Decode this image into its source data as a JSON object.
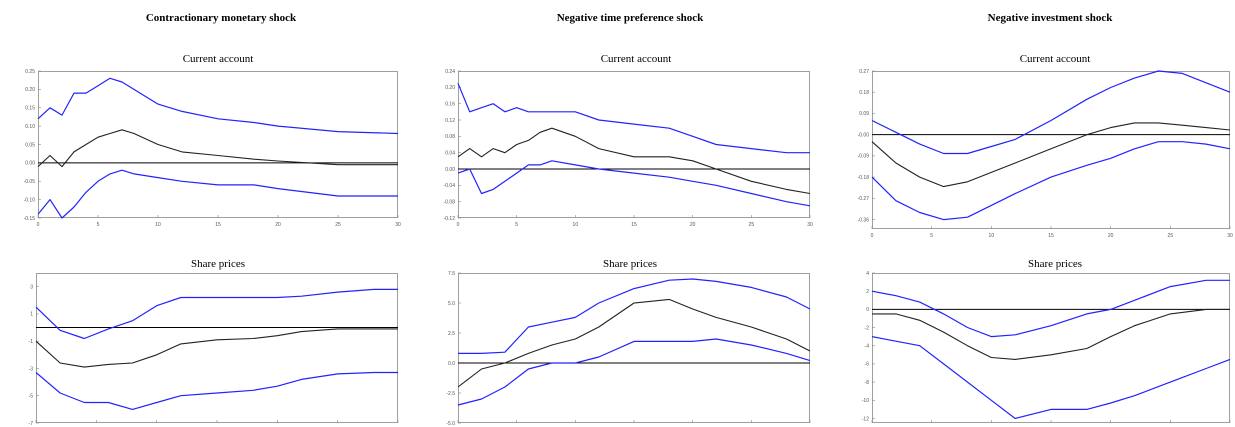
{
  "columns": [
    {
      "title": "Contractionary monetary shock"
    },
    {
      "title": "Negative time preference shock"
    },
    {
      "title": "Negative investment shock"
    }
  ],
  "colors": {
    "bands": "#2222ff",
    "median": "#222222",
    "zero": "#000000",
    "frame": "#888888"
  },
  "chart_data": [
    {
      "type": "line",
      "title": "Current account",
      "column": 0,
      "ylim": [
        -0.15,
        0.25
      ],
      "yticks": [
        -0.15,
        -0.1,
        -0.05,
        0.0,
        0.05,
        0.1,
        0.15,
        0.2,
        0.25
      ],
      "ytick_labels": [
        "-0.15",
        "-0.10",
        "-0.05",
        "0.00",
        "0.05",
        "0.10",
        "0.15",
        "0.20",
        "0.25"
      ],
      "xlim": [
        0,
        30
      ],
      "xticks": [
        0,
        5,
        10,
        15,
        20,
        25,
        30
      ],
      "x": [
        0,
        1,
        2,
        3,
        4,
        5,
        6,
        7,
        8,
        10,
        12,
        15,
        18,
        20,
        25,
        30
      ],
      "series": [
        {
          "role": "upper",
          "values": [
            0.12,
            0.15,
            0.13,
            0.19,
            0.19,
            0.21,
            0.23,
            0.22,
            0.2,
            0.16,
            0.14,
            0.12,
            0.11,
            0.1,
            0.085,
            0.08
          ]
        },
        {
          "role": "median",
          "values": [
            -0.01,
            0.02,
            -0.01,
            0.03,
            0.05,
            0.07,
            0.08,
            0.09,
            0.08,
            0.05,
            0.03,
            0.02,
            0.01,
            0.005,
            -0.005,
            -0.005
          ]
        },
        {
          "role": "lower",
          "values": [
            -0.14,
            -0.1,
            -0.15,
            -0.12,
            -0.08,
            -0.05,
            -0.03,
            -0.02,
            -0.03,
            -0.04,
            -0.05,
            -0.06,
            -0.06,
            -0.07,
            -0.09,
            -0.09
          ]
        }
      ]
    },
    {
      "type": "line",
      "title": "Current account",
      "column": 1,
      "ylim": [
        -0.12,
        0.24
      ],
      "yticks": [
        -0.12,
        -0.08,
        -0.04,
        0.0,
        0.04,
        0.08,
        0.12,
        0.16,
        0.2,
        0.24
      ],
      "ytick_labels": [
        "-0.12",
        "-0.08",
        "-0.04",
        "0.00",
        "0.04",
        "0.08",
        "0.12",
        "0.16",
        "0.20",
        "0.24"
      ],
      "xlim": [
        0,
        30
      ],
      "xticks": [
        0,
        5,
        10,
        15,
        20,
        25,
        30
      ],
      "x": [
        0,
        1,
        2,
        3,
        4,
        5,
        6,
        7,
        8,
        10,
        12,
        15,
        18,
        20,
        22,
        25,
        28,
        30
      ],
      "series": [
        {
          "role": "upper",
          "values": [
            0.21,
            0.14,
            0.15,
            0.16,
            0.14,
            0.15,
            0.14,
            0.14,
            0.14,
            0.14,
            0.12,
            0.11,
            0.1,
            0.08,
            0.06,
            0.05,
            0.04,
            0.04
          ]
        },
        {
          "role": "median",
          "values": [
            0.03,
            0.05,
            0.03,
            0.05,
            0.04,
            0.06,
            0.07,
            0.09,
            0.1,
            0.08,
            0.05,
            0.03,
            0.03,
            0.02,
            0.0,
            -0.03,
            -0.05,
            -0.06
          ]
        },
        {
          "role": "lower",
          "values": [
            -0.01,
            0.0,
            -0.06,
            -0.05,
            -0.03,
            -0.01,
            0.01,
            0.01,
            0.02,
            0.01,
            0.0,
            -0.01,
            -0.02,
            -0.03,
            -0.04,
            -0.06,
            -0.08,
            -0.09
          ]
        }
      ]
    },
    {
      "type": "line",
      "title": "Current account",
      "column": 2,
      "ylim": [
        -0.4,
        0.27
      ],
      "yticks": [
        -0.36,
        -0.27,
        -0.18,
        -0.09,
        0.0,
        0.09,
        0.18,
        0.27
      ],
      "ytick_labels": [
        "-0.36",
        "-0.27",
        "-0.18",
        "-0.09",
        "-0.00",
        "0.09",
        "0.18",
        "0.27"
      ],
      "xlim": [
        0,
        30
      ],
      "xticks": [
        0,
        5,
        10,
        15,
        20,
        25,
        30
      ],
      "x": [
        0,
        2,
        4,
        6,
        8,
        10,
        12,
        15,
        18,
        20,
        22,
        24,
        26,
        28,
        30
      ],
      "series": [
        {
          "role": "upper",
          "values": [
            0.06,
            0.01,
            -0.04,
            -0.08,
            -0.08,
            -0.05,
            -0.02,
            0.06,
            0.15,
            0.2,
            0.24,
            0.27,
            0.26,
            0.22,
            0.18
          ]
        },
        {
          "role": "median",
          "values": [
            -0.03,
            -0.12,
            -0.18,
            -0.22,
            -0.2,
            -0.16,
            -0.12,
            -0.06,
            0.0,
            0.03,
            0.05,
            0.05,
            0.04,
            0.03,
            0.02
          ]
        },
        {
          "role": "lower",
          "values": [
            -0.18,
            -0.28,
            -0.33,
            -0.36,
            -0.35,
            -0.3,
            -0.25,
            -0.18,
            -0.13,
            -0.1,
            -0.06,
            -0.03,
            -0.03,
            -0.04,
            -0.06
          ]
        }
      ]
    },
    {
      "type": "line",
      "title": "Share prices",
      "column": 0,
      "ylim": [
        -7,
        4
      ],
      "yticks": [
        -7,
        -5,
        -3,
        -1,
        1,
        3
      ],
      "ytick_labels": [
        "-7",
        "-5",
        "-3",
        "-1",
        "1",
        "3"
      ],
      "xlim": [
        0,
        30
      ],
      "xticks": [
        0,
        5,
        10,
        15,
        20,
        25,
        30
      ],
      "x": [
        0,
        2,
        4,
        6,
        8,
        10,
        12,
        15,
        18,
        20,
        22,
        25,
        28,
        30
      ],
      "series": [
        {
          "role": "upper",
          "values": [
            1.5,
            -0.2,
            -0.8,
            -0.1,
            0.5,
            1.6,
            2.2,
            2.2,
            2.2,
            2.2,
            2.3,
            2.6,
            2.8,
            2.8
          ]
        },
        {
          "role": "median",
          "values": [
            -1.0,
            -2.6,
            -2.9,
            -2.7,
            -2.6,
            -2.0,
            -1.2,
            -0.9,
            -0.8,
            -0.6,
            -0.3,
            -0.1,
            -0.1,
            -0.1
          ]
        },
        {
          "role": "lower",
          "values": [
            -3.3,
            -4.8,
            -5.5,
            -5.5,
            -6.0,
            -5.5,
            -5.0,
            -4.8,
            -4.6,
            -4.3,
            -3.8,
            -3.4,
            -3.3,
            -3.3
          ]
        }
      ]
    },
    {
      "type": "line",
      "title": "Share prices",
      "column": 1,
      "ylim": [
        -5,
        7.5
      ],
      "yticks": [
        -5,
        -2.5,
        0,
        2.5,
        5,
        7.5
      ],
      "ytick_labels": [
        "-5.0",
        "-2.5",
        "0.0",
        "2.5",
        "5.0",
        "7.5"
      ],
      "xlim": [
        0,
        30
      ],
      "xticks": [
        0,
        5,
        10,
        15,
        20,
        25,
        30
      ],
      "x": [
        0,
        2,
        4,
        6,
        8,
        10,
        12,
        15,
        18,
        20,
        22,
        25,
        28,
        30
      ],
      "series": [
        {
          "role": "upper",
          "values": [
            0.8,
            0.8,
            0.9,
            3.0,
            3.4,
            3.8,
            5.0,
            6.2,
            6.9,
            7.0,
            6.8,
            6.3,
            5.5,
            4.5
          ]
        },
        {
          "role": "median",
          "values": [
            -2.0,
            -0.5,
            0.0,
            0.8,
            1.5,
            2.0,
            3.0,
            5.0,
            5.3,
            4.5,
            3.8,
            3.0,
            2.0,
            1.0
          ]
        },
        {
          "role": "lower",
          "values": [
            -3.5,
            -3.0,
            -2.0,
            -0.5,
            0.0,
            0.0,
            0.5,
            1.8,
            1.8,
            1.8,
            2.0,
            1.5,
            0.8,
            0.2
          ]
        }
      ]
    },
    {
      "type": "line",
      "title": "Share prices",
      "column": 2,
      "ylim": [
        -12.5,
        4
      ],
      "yticks": [
        -12,
        -10,
        -8,
        -6,
        -4,
        -2,
        0,
        2,
        4
      ],
      "ytick_labels": [
        "-12",
        "-10",
        "-8",
        "-6",
        "-4",
        "-2",
        "0",
        "2",
        "4"
      ],
      "xlim": [
        0,
        30
      ],
      "xticks": [
        0,
        5,
        10,
        15,
        20,
        25,
        30
      ],
      "x": [
        0,
        2,
        4,
        6,
        8,
        10,
        12,
        15,
        18,
        20,
        22,
        25,
        28,
        30
      ],
      "series": [
        {
          "role": "upper",
          "values": [
            2.0,
            1.5,
            0.8,
            -0.5,
            -2.0,
            -3.0,
            -2.8,
            -1.8,
            -0.5,
            0.0,
            1.0,
            2.5,
            3.2,
            3.2
          ]
        },
        {
          "role": "median",
          "values": [
            -0.5,
            -0.5,
            -1.2,
            -2.5,
            -4.0,
            -5.3,
            -5.5,
            -5.0,
            -4.3,
            -3.0,
            -1.8,
            -0.5,
            0.0,
            0.0
          ]
        },
        {
          "role": "lower",
          "values": [
            -3.0,
            -3.5,
            -4.0,
            -6.0,
            -8.0,
            -10.0,
            -12.0,
            -11.0,
            -11.0,
            -10.3,
            -9.5,
            -8.0,
            -6.5,
            -5.5
          ]
        }
      ]
    }
  ]
}
